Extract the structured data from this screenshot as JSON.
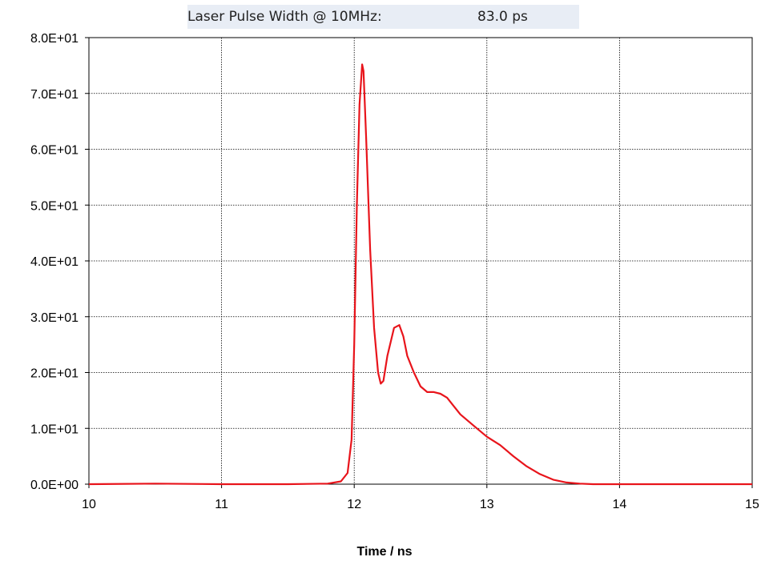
{
  "header": {
    "label": "Laser Pulse Width @ 10MHz:",
    "value": "83.0 ps"
  },
  "chart_data": {
    "type": "line",
    "title": "",
    "xlabel": "Time / ns",
    "ylabel": "",
    "xlim": [
      10,
      15
    ],
    "ylim": [
      0,
      80
    ],
    "x_ticks": [
      10,
      11,
      12,
      13,
      14,
      15
    ],
    "x_tick_labels": [
      "10",
      "11",
      "12",
      "13",
      "14",
      "15"
    ],
    "y_ticks": [
      0,
      10,
      20,
      30,
      40,
      50,
      60,
      70,
      80
    ],
    "y_tick_labels": [
      "0.0E+00",
      "1.0E+01",
      "2.0E+01",
      "3.0E+01",
      "4.0E+01",
      "5.0E+01",
      "6.0E+01",
      "7.0E+01",
      "8.0E+01"
    ],
    "grid": true,
    "series": [
      {
        "color": "#e8141b",
        "x": [
          10.0,
          10.5,
          11.0,
          11.5,
          11.8,
          11.9,
          11.95,
          11.98,
          12.0,
          12.02,
          12.04,
          12.06,
          12.07,
          12.09,
          12.12,
          12.15,
          12.18,
          12.2,
          12.22,
          12.25,
          12.3,
          12.34,
          12.37,
          12.4,
          12.45,
          12.5,
          12.55,
          12.6,
          12.65,
          12.7,
          12.75,
          12.8,
          12.9,
          13.0,
          13.1,
          13.2,
          13.3,
          13.4,
          13.5,
          13.6,
          13.7,
          13.8,
          14.0,
          14.5,
          15.0
        ],
        "y": [
          0.0,
          0.1,
          0.0,
          0.0,
          0.1,
          0.5,
          2.0,
          8.0,
          25.0,
          50.0,
          68.0,
          75.2,
          74.0,
          62.0,
          42.0,
          28.0,
          20.0,
          18.0,
          18.5,
          23.0,
          28.0,
          28.5,
          26.5,
          23.0,
          20.0,
          17.5,
          16.5,
          16.5,
          16.2,
          15.5,
          14.0,
          12.5,
          10.5,
          8.5,
          7.0,
          5.0,
          3.2,
          1.8,
          0.8,
          0.3,
          0.1,
          0.0,
          0.0,
          0.0,
          0.0
        ]
      }
    ]
  }
}
